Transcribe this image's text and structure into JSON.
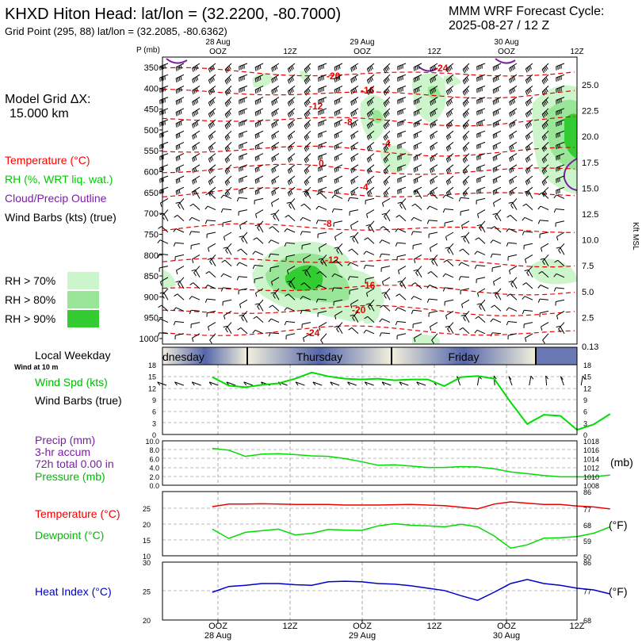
{
  "header": {
    "station_title": "KHXD Hiton Head:  lat/lon = (32.2200, -80.7000)",
    "grid_point": "Grid Point (295, 88) lat/lon = (32.2085, -80.6362)",
    "cycle_label": "MMM WRF Forecast Cycle:",
    "cycle_value": "2025-08-27 / 12  Z"
  },
  "left_panel": {
    "model_grid_label": "Model Grid ΔX:",
    "model_grid_value": "15.000 km",
    "legend": [
      {
        "label": "Temperature (°C)",
        "color": "#ff0000"
      },
      {
        "label": "RH (%, WRT liq. wat.)",
        "color": "#00cc00"
      },
      {
        "label": "Cloud/Precip Outline",
        "color": "#7a1fa2"
      },
      {
        "label": "Wind Barbs (kts) (true)",
        "color": "#000000"
      }
    ],
    "rh_legend": [
      {
        "label": "RH > 70%",
        "color": "#ccf5cc"
      },
      {
        "label": "RH > 80%",
        "color": "#99e699"
      },
      {
        "label": "RH > 90%",
        "color": "#33cc33"
      }
    ]
  },
  "time_axis": {
    "top_dates": [
      "28 Aug",
      "29 Aug",
      "30 Aug"
    ],
    "top_hours": [
      "OOZ",
      "12Z",
      "OOZ",
      "12Z",
      "OOZ",
      "12Z"
    ],
    "bottom_hours": [
      "OOZ",
      "12Z",
      "OOZ",
      "12Z",
      "OOZ",
      "12Z"
    ],
    "bottom_dates": [
      "28 Aug",
      "29 Aug",
      "30 Aug"
    ]
  },
  "sounding": {
    "p_label": "P (mb)",
    "pressure_ticks": [
      "350",
      "400",
      "450",
      "500",
      "550",
      "600",
      "650",
      "700",
      "750",
      "800",
      "850",
      "900",
      "950",
      "1000"
    ],
    "height_ticks": [
      "25.0",
      "22.5",
      "20.0",
      "17.5",
      "15.0",
      "12.5",
      "10.0",
      "7.5",
      "5.0",
      "2.5",
      "0.13"
    ],
    "height_axis_label": "Kft MSL",
    "isotherm_labels": [
      "-24",
      "-20",
      "-16",
      "-12",
      "-8",
      "-4",
      "0",
      "-4",
      "-8",
      "-12",
      "-16",
      "-20",
      "-24"
    ]
  },
  "weekday_bar": {
    "label": "Local Weekday",
    "days": [
      "dnesday",
      "Thursday",
      "Friday"
    ]
  },
  "wind_panel": {
    "sub_label": "Wind at 10 m",
    "label_speed": "Wind Spd (kts)",
    "label_barbs": "Wind Barbs (true)",
    "y_ticks": [
      "18",
      "15",
      "12",
      "9",
      "6",
      "3",
      "0"
    ]
  },
  "precip_panel": {
    "label_precip": "Precip (mm)",
    "label_accum": "3-hr accum",
    "label_total": "72h total 0.00 in",
    "label_pressure": "Pressure (mb)",
    "left_ticks": [
      "10.0",
      "8.0",
      "6.0",
      "4.0",
      "2.0",
      "0.0"
    ],
    "right_ticks": [
      "1018",
      "1016",
      "1014",
      "1012",
      "1010",
      "1008"
    ],
    "right_unit": "(mb)"
  },
  "temp_panel": {
    "label_temp": "Temperature (°C)",
    "label_dew": "Dewpoint (°C)",
    "left_ticks": [
      "25",
      "20",
      "15",
      "10"
    ],
    "right_ticks": [
      "77",
      "68",
      "59",
      "50"
    ],
    "right_extra_top": "86",
    "right_unit": "(°F)"
  },
  "heat_panel": {
    "label": "Heat Index (°C)",
    "left_ticks": [
      "30",
      "25",
      "20"
    ],
    "right_ticks": [
      "86",
      "77",
      "68"
    ],
    "right_unit": "(°F)"
  },
  "chart_data": [
    {
      "type": "line",
      "title": "Wind Spd (kts)",
      "x": [
        0,
        3,
        6,
        9,
        12,
        15,
        18,
        21,
        24,
        27,
        30,
        33,
        36,
        39,
        42,
        45,
        48,
        51,
        54,
        57,
        60,
        63,
        66,
        69,
        72
      ],
      "series": [
        {
          "name": "Wind Spd (kts)",
          "values": [
            14.8,
            12.6,
            12.2,
            12.8,
            13.2,
            14.4,
            16,
            15,
            14.4,
            14.2,
            14.4,
            14,
            14.2,
            14.2,
            12.5,
            14.8,
            15.1,
            14.4,
            8.3,
            2.7,
            5.1,
            4.8,
            1.2,
            2.6,
            5.3
          ],
          "color": "#00dd00"
        }
      ],
      "ylim": [
        0,
        18
      ]
    },
    {
      "type": "line",
      "title": "Pressure (mb)",
      "x": [
        0,
        3,
        6,
        9,
        12,
        15,
        18,
        21,
        24,
        27,
        30,
        33,
        36,
        39,
        42,
        45,
        48,
        51,
        54,
        57,
        60,
        63,
        66,
        69,
        72
      ],
      "series": [
        {
          "name": "Pressure (mb)",
          "values": [
            1016.3,
            1015.9,
            1014.5,
            1015.0,
            1015.1,
            1014.9,
            1014.6,
            1014.5,
            1014.0,
            1013.3,
            1012.5,
            1012.6,
            1012.3,
            1012.0,
            1012.0,
            1012.2,
            1012.1,
            1011.7,
            1011.0,
            1010.6,
            1010.2,
            1009.9,
            1009.9,
            1009.9,
            1010.3
          ],
          "color": "#00dd00"
        }
      ],
      "ylim": [
        1008,
        1018
      ]
    },
    {
      "type": "line",
      "title": "Temperature / Dewpoint (°C)",
      "x": [
        0,
        3,
        6,
        9,
        12,
        15,
        18,
        21,
        24,
        27,
        30,
        33,
        36,
        39,
        42,
        45,
        48,
        51,
        54,
        57,
        60,
        63,
        66,
        69,
        72
      ],
      "series": [
        {
          "name": "Temperature (°C)",
          "values": [
            25.3,
            26.1,
            26.1,
            26.2,
            26.1,
            26.0,
            26.0,
            26.0,
            25.8,
            25.8,
            25.8,
            25.9,
            26.0,
            25.8,
            25.6,
            25.1,
            24.6,
            26.1,
            26.8,
            26.4,
            26.0,
            26.0,
            25.5,
            25.2,
            24.6
          ],
          "color": "#ee0000"
        },
        {
          "name": "Dewpoint (°C)",
          "values": [
            18.3,
            15.4,
            17.3,
            17.8,
            18.3,
            16.5,
            17.0,
            18.2,
            18.0,
            17.9,
            19.3,
            20.0,
            19.5,
            19.3,
            19.0,
            19.8,
            19.0,
            16.2,
            12.4,
            13.4,
            15.5,
            15.6,
            16.0,
            17.0,
            19.0
          ],
          "color": "#00dd00"
        }
      ],
      "ylim": [
        10,
        30
      ]
    },
    {
      "type": "line",
      "title": "Heat Index (°C)",
      "x": [
        0,
        3,
        6,
        9,
        12,
        15,
        18,
        21,
        24,
        27,
        30,
        33,
        36,
        39,
        42,
        45,
        48,
        51,
        54,
        57,
        60,
        63,
        66,
        69,
        72
      ],
      "series": [
        {
          "name": "Heat Index (°C)",
          "values": [
            24.8,
            25.8,
            26.0,
            26.3,
            26.3,
            26.1,
            26.0,
            26.6,
            26.7,
            26.6,
            26.3,
            26.2,
            25.9,
            25.5,
            25.1,
            24.2,
            23.4,
            24.8,
            26.3,
            27.0,
            26.3,
            26.0,
            25.5,
            25.2,
            24.5
          ],
          "color": "#0000cc"
        }
      ],
      "ylim": [
        20,
        30
      ]
    }
  ]
}
